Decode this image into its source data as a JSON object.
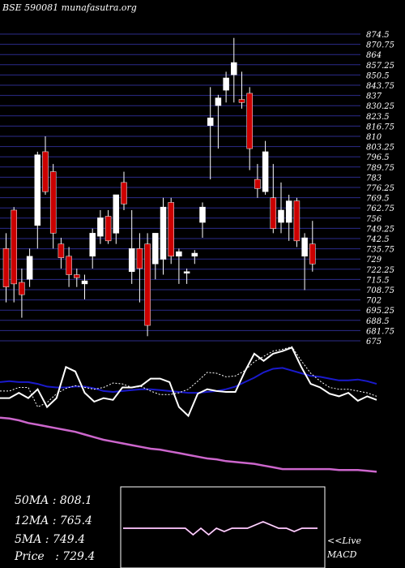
{
  "title": "BSE 590081 munafasutra.org",
  "colors": {
    "background": "#000000",
    "gridline": "#2b2b8a",
    "candle_up": "#ffffff",
    "candle_down": "#cc0000",
    "ma_pink": "#cc66cc",
    "ma_blue": "#1a1acc",
    "price_white": "#ffffff",
    "macd_line": "#cc66cc"
  },
  "stats": {
    "ma50": "50MA : 808.1",
    "ma12": "12MA : 765.4",
    "ma5": "5MA : 749.4",
    "price": "Price   : 729.4"
  },
  "live_label": "<<Live",
  "macd_label": "MACD",
  "chart_data": {
    "type": "candlestick",
    "y_ticks": [
      "874.5",
      "870.75",
      "864",
      "857.25",
      "850.5",
      "843.75",
      "837",
      "830.25",
      "823.5",
      "816.75",
      "810",
      "803.25",
      "796.5",
      "789.75",
      "783",
      "776.25",
      "769.5",
      "762.75",
      "756",
      "749.25",
      "742.5",
      "735.75",
      "729",
      "722.25",
      "715.5",
      "708.75",
      "702",
      "695.25",
      "688.5",
      "681.75",
      "675"
    ],
    "grid": true,
    "candles": [
      {
        "o": 735,
        "h": 745,
        "l": 700,
        "c": 710,
        "dir": "down"
      },
      {
        "o": 760,
        "h": 762,
        "l": 700,
        "c": 712,
        "dir": "down"
      },
      {
        "o": 713,
        "h": 722,
        "l": 690,
        "c": 705,
        "dir": "down"
      },
      {
        "o": 715,
        "h": 735,
        "l": 710,
        "c": 730,
        "dir": "up"
      },
      {
        "o": 750,
        "h": 798,
        "l": 735,
        "c": 796,
        "dir": "up"
      },
      {
        "o": 798,
        "h": 808,
        "l": 770,
        "c": 772,
        "dir": "down"
      },
      {
        "o": 785,
        "h": 790,
        "l": 735,
        "c": 745,
        "dir": "down"
      },
      {
        "o": 738,
        "h": 742,
        "l": 722,
        "c": 729,
        "dir": "down"
      },
      {
        "o": 730,
        "h": 736,
        "l": 710,
        "c": 718,
        "dir": "down"
      },
      {
        "o": 718,
        "h": 722,
        "l": 710,
        "c": 716,
        "dir": "down"
      },
      {
        "o": 714,
        "h": 718,
        "l": 702,
        "c": 712,
        "dir": "up"
      },
      {
        "o": 730,
        "h": 748,
        "l": 722,
        "c": 745,
        "dir": "up"
      },
      {
        "o": 743,
        "h": 760,
        "l": 738,
        "c": 755,
        "dir": "up"
      },
      {
        "o": 740,
        "h": 760,
        "l": 738,
        "c": 756,
        "dir": "down"
      },
      {
        "o": 745,
        "h": 770,
        "l": 738,
        "c": 770,
        "dir": "up"
      },
      {
        "o": 778,
        "h": 785,
        "l": 760,
        "c": 764,
        "dir": "down"
      },
      {
        "o": 720,
        "h": 760,
        "l": 712,
        "c": 735,
        "dir": "up"
      },
      {
        "o": 735,
        "h": 745,
        "l": 700,
        "c": 722,
        "dir": "down"
      },
      {
        "o": 738,
        "h": 745,
        "l": 678,
        "c": 685,
        "dir": "down"
      },
      {
        "o": 725,
        "h": 745,
        "l": 715,
        "c": 745,
        "dir": "up"
      },
      {
        "o": 728,
        "h": 768,
        "l": 718,
        "c": 762,
        "dir": "up"
      },
      {
        "o": 765,
        "h": 768,
        "l": 725,
        "c": 730,
        "dir": "down"
      },
      {
        "o": 730,
        "h": 735,
        "l": 712,
        "c": 733,
        "dir": "up"
      },
      {
        "o": 719,
        "h": 722,
        "l": 712,
        "c": 720,
        "dir": "up"
      },
      {
        "o": 730,
        "h": 734,
        "l": 725,
        "c": 732,
        "dir": "up"
      },
      {
        "o": 752,
        "h": 765,
        "l": 742,
        "c": 762,
        "dir": "up"
      },
      {
        "o": 815,
        "h": 840,
        "l": 780,
        "c": 820,
        "dir": "up"
      },
      {
        "o": 828,
        "h": 835,
        "l": 800,
        "c": 833,
        "dir": "up"
      },
      {
        "o": 838,
        "h": 850,
        "l": 830,
        "c": 846,
        "dir": "up"
      },
      {
        "o": 848,
        "h": 872,
        "l": 830,
        "c": 856,
        "dir": "up"
      },
      {
        "o": 830,
        "h": 850,
        "l": 826,
        "c": 832,
        "dir": "down"
      },
      {
        "o": 836,
        "h": 840,
        "l": 786,
        "c": 800,
        "dir": "down"
      },
      {
        "o": 780,
        "h": 790,
        "l": 768,
        "c": 774,
        "dir": "down"
      },
      {
        "o": 772,
        "h": 805,
        "l": 770,
        "c": 798,
        "dir": "up"
      },
      {
        "o": 768,
        "h": 790,
        "l": 745,
        "c": 748,
        "dir": "down"
      },
      {
        "o": 760,
        "h": 778,
        "l": 745,
        "c": 752,
        "dir": "up"
      },
      {
        "o": 752,
        "h": 770,
        "l": 740,
        "c": 766,
        "dir": "up"
      },
      {
        "o": 766,
        "h": 768,
        "l": 736,
        "c": 740,
        "dir": "down"
      },
      {
        "o": 730,
        "h": 745,
        "l": 708,
        "c": 742,
        "dir": "up"
      },
      {
        "o": 738,
        "h": 753,
        "l": 720,
        "c": 725,
        "dir": "down"
      }
    ],
    "ma_pink": [
      678,
      677,
      675,
      672,
      670,
      668,
      666,
      664,
      662,
      659,
      656,
      653,
      651,
      649,
      647,
      645,
      643,
      642,
      640,
      638,
      636,
      634,
      632,
      631,
      629,
      628,
      627,
      626,
      624,
      622,
      620,
      620,
      620,
      620,
      620,
      620,
      619,
      619,
      619,
      618,
      617
    ],
    "ma_blue": [
      718,
      719,
      718,
      718,
      716,
      713,
      712,
      712,
      713,
      713,
      711,
      708,
      707,
      708,
      709,
      710,
      710,
      709,
      708,
      707,
      706,
      706,
      707,
      708,
      710,
      713,
      718,
      723,
      729,
      733,
      734,
      731,
      728,
      725,
      724,
      722,
      720,
      720,
      721,
      719,
      716
    ],
    "ma_dotted": [
      708,
      708,
      712,
      712,
      690,
      695,
      705,
      711,
      714,
      712,
      710,
      712,
      717,
      716,
      712,
      713,
      708,
      704,
      704,
      706,
      710,
      719,
      729,
      728,
      724,
      725,
      731,
      741,
      747,
      753,
      755,
      758,
      742,
      728,
      719,
      712,
      710,
      710,
      708,
      706,
      702
    ],
    "price_line": [
      700,
      700,
      706,
      700,
      710,
      690,
      700,
      735,
      730,
      706,
      696,
      700,
      698,
      712,
      712,
      714,
      722,
      722,
      718,
      690,
      680,
      705,
      710,
      708,
      707,
      707,
      730,
      750,
      742,
      750,
      753,
      757,
      735,
      716,
      712,
      705,
      702,
      706,
      697,
      702,
      698
    ],
    "macd": [
      0,
      0,
      0,
      0,
      0,
      0,
      0,
      0,
      0,
      -2,
      0,
      -2,
      0,
      -1,
      0,
      0,
      0,
      1,
      2,
      1,
      0,
      0,
      -1,
      0,
      0,
      0
    ]
  }
}
